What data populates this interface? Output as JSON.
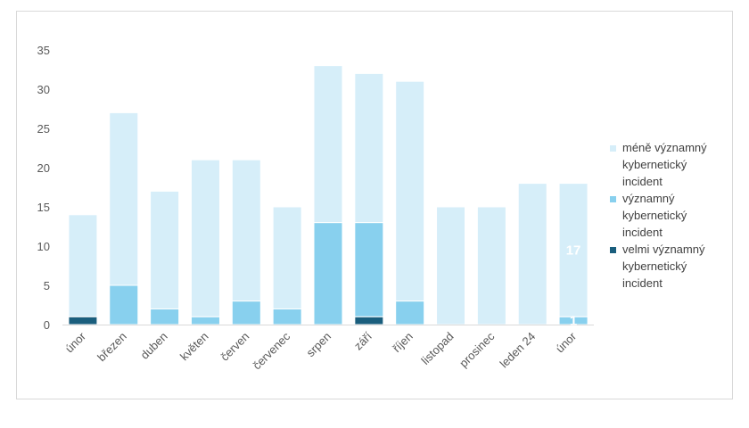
{
  "chart_data": {
    "type": "bar",
    "stacked": true,
    "title": "",
    "xlabel": "",
    "ylabel": "",
    "ylim": [
      0,
      35
    ],
    "yticks": [
      0,
      5,
      10,
      15,
      20,
      25,
      30,
      35
    ],
    "grid": false,
    "legend_position": "right",
    "categories": [
      "únor",
      "březen",
      "duben",
      "květen",
      "červen",
      "červenec",
      "srpen",
      "září",
      "říjen",
      "listopad",
      "prosinec",
      "leden 24",
      "únor"
    ],
    "series": [
      {
        "name": "velmi významný kybernetický incident",
        "color": "#1a5e7d",
        "values": [
          1,
          0,
          0,
          0,
          0,
          0,
          0,
          1,
          0,
          0,
          0,
          0,
          0
        ]
      },
      {
        "name": "významný kybernetický incident",
        "color": "#88d0ee",
        "values": [
          0,
          5,
          2,
          1,
          3,
          2,
          13,
          12,
          3,
          0,
          0,
          0,
          1
        ]
      },
      {
        "name": "méně významný kybernetický incident",
        "color": "#d6eef9",
        "values": [
          13,
          22,
          15,
          20,
          18,
          13,
          20,
          19,
          28,
          15,
          15,
          18,
          17
        ]
      }
    ],
    "data_labels": [
      {
        "category_index": 12,
        "series_index": 2,
        "text": "17"
      },
      {
        "category_index": 12,
        "series_index": 1,
        "text": "1"
      }
    ],
    "legend": [
      {
        "lines": [
          "méně významný",
          "kybernetický",
          "incident"
        ],
        "color": "#d6eef9"
      },
      {
        "lines": [
          "významný",
          "kybernetický",
          "incident"
        ],
        "color": "#88d0ee"
      },
      {
        "lines": [
          "velmi významný",
          "kybernetický",
          "incident"
        ],
        "color": "#1a5e7d"
      }
    ]
  }
}
